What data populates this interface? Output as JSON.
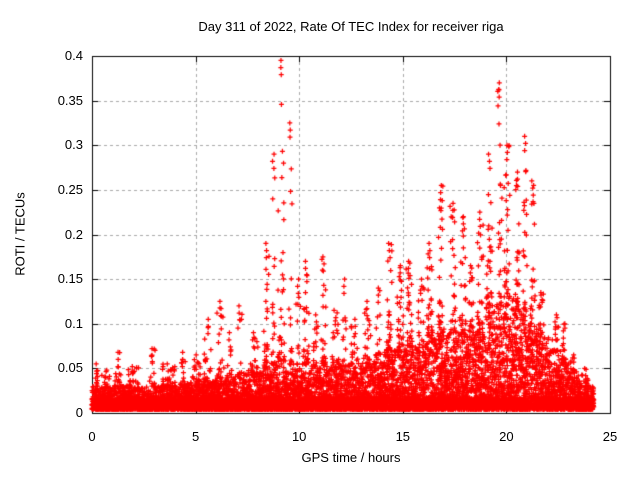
{
  "chart_data": {
    "type": "scatter",
    "title": "Day 311 of 2022, Rate Of TEC Index for receiver riga",
    "xlabel": "GPS time / hours",
    "ylabel": "ROTI / TECUs",
    "xlim": [
      0,
      25
    ],
    "ylim": [
      0,
      0.4
    ],
    "grid": true,
    "legend": false,
    "xticks": [
      {
        "v": 0,
        "label": "0"
      },
      {
        "v": 5,
        "label": "5"
      },
      {
        "v": 10,
        "label": "10"
      },
      {
        "v": 15,
        "label": "15"
      },
      {
        "v": 20,
        "label": "20"
      },
      {
        "v": 25,
        "label": "25"
      }
    ],
    "yticks": [
      {
        "v": 0,
        "label": "0"
      },
      {
        "v": 0.05,
        "label": "0.05"
      },
      {
        "v": 0.1,
        "label": "0.1"
      },
      {
        "v": 0.15,
        "label": "0.15"
      },
      {
        "v": 0.2,
        "label": "0.2"
      },
      {
        "v": 0.25,
        "label": "0.25"
      },
      {
        "v": 0.3,
        "label": "0.3"
      },
      {
        "v": 0.35,
        "label": "0.35"
      },
      {
        "v": 0.4,
        "label": "0.4"
      }
    ],
    "marker": {
      "shape": "plus",
      "color": "#ff0000",
      "size": 5
    },
    "colors": {
      "points": "#ff0000",
      "grid": "#a8a8a8",
      "axis": "#000000",
      "text": "#000000",
      "background": "#ffffff"
    },
    "data_hours_range": [
      0,
      24.2
    ],
    "scatter_envelope_columns": [
      "hour_start",
      "hour_end",
      "dense_band_top_roti",
      "max_roti"
    ],
    "scatter_envelope": [
      [
        0.0,
        0.3,
        0.03,
        0.055
      ],
      [
        0.3,
        1.0,
        0.028,
        0.048
      ],
      [
        1.0,
        1.6,
        0.03,
        0.068
      ],
      [
        1.6,
        2.6,
        0.028,
        0.052
      ],
      [
        2.6,
        3.1,
        0.03,
        0.072
      ],
      [
        3.1,
        4.2,
        0.03,
        0.055
      ],
      [
        4.2,
        4.6,
        0.032,
        0.068
      ],
      [
        4.6,
        5.3,
        0.035,
        0.065
      ],
      [
        5.3,
        5.9,
        0.038,
        0.105
      ],
      [
        5.9,
        6.5,
        0.04,
        0.125
      ],
      [
        6.5,
        6.9,
        0.04,
        0.09
      ],
      [
        6.9,
        7.3,
        0.042,
        0.12
      ],
      [
        7.3,
        8.1,
        0.045,
        0.09
      ],
      [
        8.1,
        8.6,
        0.05,
        0.19
      ],
      [
        8.6,
        8.9,
        0.055,
        0.29
      ],
      [
        8.9,
        9.45,
        0.06,
        0.395
      ],
      [
        9.45,
        9.7,
        0.055,
        0.325
      ],
      [
        9.7,
        10.1,
        0.05,
        0.15
      ],
      [
        10.1,
        10.6,
        0.055,
        0.17
      ],
      [
        10.6,
        11.0,
        0.055,
        0.11
      ],
      [
        11.0,
        11.4,
        0.055,
        0.175
      ],
      [
        11.4,
        12.0,
        0.055,
        0.115
      ],
      [
        12.0,
        12.35,
        0.055,
        0.15
      ],
      [
        12.35,
        13.0,
        0.055,
        0.105
      ],
      [
        13.0,
        13.6,
        0.06,
        0.125
      ],
      [
        13.6,
        14.1,
        0.065,
        0.14
      ],
      [
        14.1,
        14.6,
        0.07,
        0.19
      ],
      [
        14.6,
        15.1,
        0.07,
        0.165
      ],
      [
        15.1,
        15.6,
        0.075,
        0.17
      ],
      [
        15.6,
        16.1,
        0.08,
        0.15
      ],
      [
        16.1,
        16.6,
        0.085,
        0.19
      ],
      [
        16.6,
        17.1,
        0.09,
        0.255
      ],
      [
        17.1,
        17.6,
        0.09,
        0.235
      ],
      [
        17.6,
        18.1,
        0.09,
        0.22
      ],
      [
        18.1,
        18.5,
        0.085,
        0.165
      ],
      [
        18.5,
        19.0,
        0.09,
        0.225
      ],
      [
        19.0,
        19.5,
        0.12,
        0.29
      ],
      [
        19.5,
        19.85,
        0.13,
        0.37
      ],
      [
        19.85,
        20.35,
        0.13,
        0.3
      ],
      [
        20.35,
        20.7,
        0.125,
        0.27
      ],
      [
        20.7,
        21.05,
        0.115,
        0.31
      ],
      [
        21.05,
        21.45,
        0.1,
        0.26
      ],
      [
        21.45,
        22.05,
        0.085,
        0.135
      ],
      [
        22.05,
        22.6,
        0.07,
        0.11
      ],
      [
        22.6,
        23.1,
        0.06,
        0.1
      ],
      [
        23.1,
        23.5,
        0.045,
        0.065
      ],
      [
        23.5,
        24.2,
        0.03,
        0.05
      ]
    ]
  }
}
